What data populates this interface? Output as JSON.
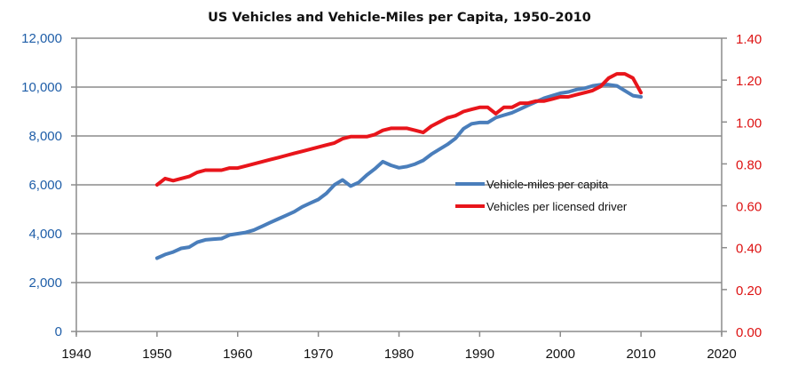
{
  "chart_data": {
    "type": "line",
    "title": "US Vehicles and Vehicle-Miles per Capita, 1950–2010",
    "xlabel": "",
    "ylabel_left": "",
    "ylabel_right": "",
    "xlim": [
      1940,
      2020
    ],
    "x_ticks": [
      "1940",
      "1950",
      "1960",
      "1970",
      "1980",
      "1990",
      "2000",
      "2010",
      "2020"
    ],
    "ylim_left": [
      0,
      12000
    ],
    "y_ticks_left": [
      "0",
      "2,000",
      "4,000",
      "6,000",
      "8,000",
      "10,000",
      "12,000"
    ],
    "ylim_right": [
      0,
      1.4
    ],
    "y_ticks_right": [
      "0.00",
      "0.20",
      "0.40",
      "0.60",
      "0.80",
      "1.00",
      "1.20",
      "1.40"
    ],
    "grid": "horizontal",
    "legend_position": "center-right",
    "series": [
      {
        "name": "Vehicle-miles per capita",
        "axis": "left",
        "color": "#4a7ebb",
        "x": [
          1950,
          1951,
          1952,
          1953,
          1954,
          1955,
          1956,
          1957,
          1958,
          1959,
          1960,
          1961,
          1962,
          1963,
          1964,
          1965,
          1966,
          1967,
          1968,
          1969,
          1970,
          1971,
          1972,
          1973,
          1974,
          1975,
          1976,
          1977,
          1978,
          1979,
          1980,
          1981,
          1982,
          1983,
          1984,
          1985,
          1986,
          1987,
          1988,
          1989,
          1990,
          1991,
          1992,
          1993,
          1994,
          1995,
          1996,
          1997,
          1998,
          1999,
          2000,
          2001,
          2002,
          2003,
          2004,
          2005,
          2006,
          2007,
          2008,
          2009,
          2010
        ],
        "values": [
          3000,
          3150,
          3250,
          3400,
          3450,
          3650,
          3750,
          3780,
          3800,
          3950,
          4000,
          4050,
          4150,
          4300,
          4450,
          4600,
          4750,
          4900,
          5100,
          5250,
          5400,
          5650,
          6000,
          6200,
          5950,
          6100,
          6400,
          6650,
          6950,
          6800,
          6700,
          6750,
          6850,
          7000,
          7250,
          7450,
          7650,
          7900,
          8300,
          8500,
          8550,
          8550,
          8750,
          8850,
          8950,
          9100,
          9250,
          9400,
          9550,
          9650,
          9750,
          9800,
          9900,
          9950,
          10050,
          10100,
          10100,
          10050,
          9850,
          9650,
          9600
        ]
      },
      {
        "name": "Vehicles per licensed driver",
        "axis": "right",
        "color": "#e8151b",
        "x": [
          1950,
          1951,
          1952,
          1953,
          1954,
          1955,
          1956,
          1957,
          1958,
          1959,
          1960,
          1961,
          1962,
          1963,
          1964,
          1965,
          1966,
          1967,
          1968,
          1969,
          1970,
          1971,
          1972,
          1973,
          1974,
          1975,
          1976,
          1977,
          1978,
          1979,
          1980,
          1981,
          1982,
          1983,
          1984,
          1985,
          1986,
          1987,
          1988,
          1989,
          1990,
          1991,
          1992,
          1993,
          1994,
          1995,
          1996,
          1997,
          1998,
          1999,
          2000,
          2001,
          2002,
          2003,
          2004,
          2005,
          2006,
          2007,
          2008,
          2009,
          2010
        ],
        "values": [
          0.7,
          0.73,
          0.72,
          0.73,
          0.74,
          0.76,
          0.77,
          0.77,
          0.77,
          0.78,
          0.78,
          0.79,
          0.8,
          0.81,
          0.82,
          0.83,
          0.84,
          0.85,
          0.86,
          0.87,
          0.88,
          0.89,
          0.9,
          0.92,
          0.93,
          0.93,
          0.93,
          0.94,
          0.96,
          0.97,
          0.97,
          0.97,
          0.96,
          0.95,
          0.98,
          1.0,
          1.02,
          1.03,
          1.05,
          1.06,
          1.07,
          1.07,
          1.04,
          1.07,
          1.07,
          1.09,
          1.09,
          1.1,
          1.1,
          1.11,
          1.12,
          1.12,
          1.13,
          1.14,
          1.15,
          1.17,
          1.21,
          1.23,
          1.23,
          1.21,
          1.14
        ]
      }
    ]
  },
  "colors": {
    "left_axis_text": "#1f5ea8",
    "right_axis_text": "#dd1111",
    "grid": "#8c8c8c"
  }
}
